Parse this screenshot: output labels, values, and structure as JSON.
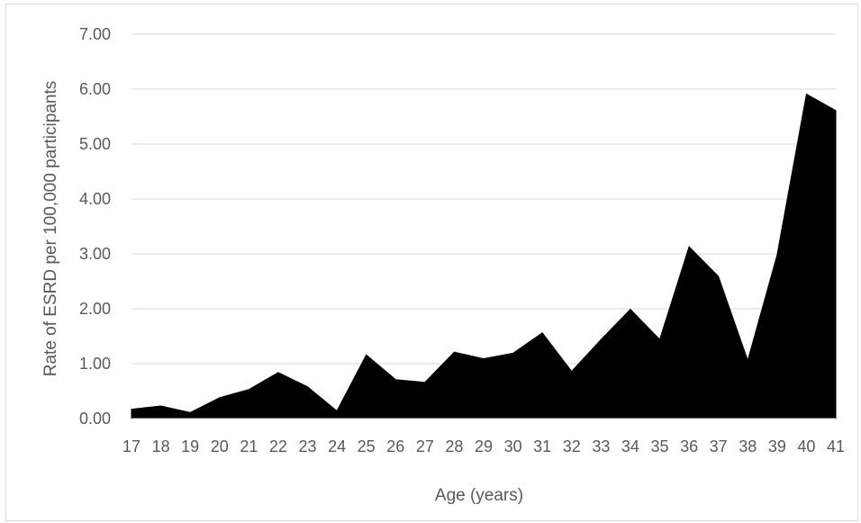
{
  "chart_data": {
    "type": "area",
    "title": "",
    "xlabel": "Age (years)",
    "ylabel": "Rate of ESRD per 100,000 participants",
    "x": [
      17,
      18,
      19,
      20,
      21,
      22,
      23,
      24,
      25,
      26,
      27,
      28,
      29,
      30,
      31,
      32,
      33,
      34,
      35,
      36,
      37,
      38,
      39,
      40,
      41
    ],
    "series": [
      {
        "values": [
          0.17,
          0.23,
          0.11,
          0.38,
          0.53,
          0.84,
          0.58,
          0.14,
          1.16,
          0.71,
          0.66,
          1.21,
          1.09,
          1.19,
          1.56,
          0.86,
          1.44,
          1.99,
          1.44,
          3.13,
          2.59,
          1.06,
          2.98,
          5.91,
          5.61
        ],
        "color": "#000000"
      }
    ],
    "ylim": [
      0,
      7
    ],
    "yticks": [
      "0.00",
      "1.00",
      "2.00",
      "3.00",
      "4.00",
      "5.00",
      "6.00",
      "7.00"
    ],
    "grid": true,
    "legend": "none",
    "gridline_color": "#d9d9d9"
  }
}
